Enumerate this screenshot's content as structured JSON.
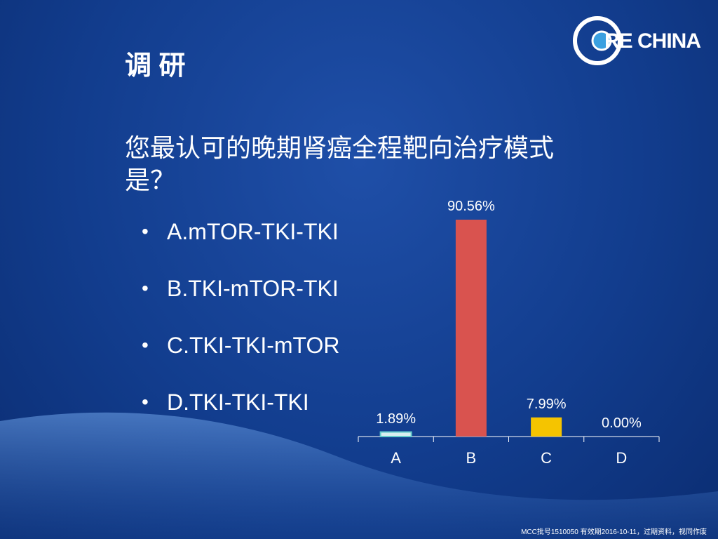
{
  "title": "调 研",
  "question": "您最认可的晚期肾癌全程靶向治疗模式是？",
  "options": [
    "A.mTOR-TKI-TKI",
    "B.TKI-mTOR-TKI",
    "C.TKI-TKI-mTOR",
    "D.TKI-TKI-TKI"
  ],
  "logo": "RE CHINA",
  "footer": "MCC批号1510050  有效期2016-10-11，过期资料，视同作废",
  "chart_data": {
    "type": "bar",
    "categories": [
      "A",
      "B",
      "C",
      "D"
    ],
    "values": [
      1.89,
      90.56,
      7.99,
      0.0
    ],
    "value_labels": [
      "1.89%",
      "90.56%",
      "7.99%",
      "0.00%"
    ],
    "colors": [
      "#d8eef0",
      "#d9534f",
      "#f5c400",
      "#cccccc"
    ]
  }
}
